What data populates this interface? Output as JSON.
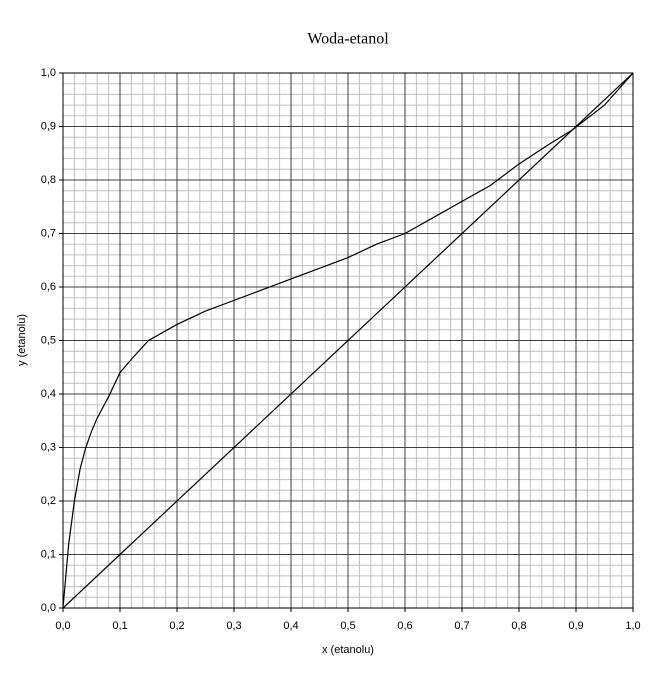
{
  "chart_data": {
    "type": "line",
    "title": "Woda-etanol",
    "xlabel": "x (etanolu)",
    "ylabel": "y (etanolu)",
    "xlim": [
      0,
      1
    ],
    "ylim": [
      0,
      1
    ],
    "xticks": [
      {
        "value": 0,
        "label": "0,0"
      },
      {
        "value": 0.1,
        "label": "0,1"
      },
      {
        "value": 0.2,
        "label": "0,2"
      },
      {
        "value": 0.3,
        "label": "0,3"
      },
      {
        "value": 0.4,
        "label": "0,4"
      },
      {
        "value": 0.5,
        "label": "0,5"
      },
      {
        "value": 0.6,
        "label": "0,6"
      },
      {
        "value": 0.7,
        "label": "0,7"
      },
      {
        "value": 0.8,
        "label": "0,8"
      },
      {
        "value": 0.9,
        "label": "0,9"
      },
      {
        "value": 1,
        "label": "1,0"
      }
    ],
    "yticks": [
      {
        "value": 0,
        "label": "0,0"
      },
      {
        "value": 0.1,
        "label": "0,1"
      },
      {
        "value": 0.2,
        "label": "0,2"
      },
      {
        "value": 0.3,
        "label": "0,3"
      },
      {
        "value": 0.4,
        "label": "0,4"
      },
      {
        "value": 0.5,
        "label": "0,5"
      },
      {
        "value": 0.6,
        "label": "0,6"
      },
      {
        "value": 0.7,
        "label": "0,7"
      },
      {
        "value": 0.8,
        "label": "0,8"
      },
      {
        "value": 0.9,
        "label": "0,9"
      },
      {
        "value": 1,
        "label": "1,0"
      }
    ],
    "xminorticks": [
      0.02,
      0.04,
      0.06,
      0.08,
      0.12,
      0.14,
      0.16,
      0.18,
      0.22,
      0.24,
      0.26,
      0.28,
      0.32,
      0.34,
      0.36,
      0.38,
      0.42,
      0.44,
      0.46,
      0.48,
      0.52,
      0.54,
      0.56,
      0.58,
      0.62,
      0.64,
      0.66,
      0.68,
      0.72,
      0.74,
      0.76,
      0.78,
      0.82,
      0.84,
      0.86,
      0.88,
      0.92,
      0.94,
      0.96,
      0.98
    ],
    "yminorticks": [
      0.02,
      0.04,
      0.06,
      0.08,
      0.12,
      0.14,
      0.16,
      0.18,
      0.22,
      0.24,
      0.26,
      0.28,
      0.32,
      0.34,
      0.36,
      0.38,
      0.42,
      0.44,
      0.46,
      0.48,
      0.52,
      0.54,
      0.56,
      0.58,
      0.62,
      0.64,
      0.66,
      0.68,
      0.72,
      0.74,
      0.76,
      0.78,
      0.82,
      0.84,
      0.86,
      0.88,
      0.92,
      0.94,
      0.96,
      0.98
    ],
    "grid": true,
    "series": [
      {
        "color": "#000000",
        "x": [
          0,
          0.01,
          0.02,
          0.03,
          0.04,
          0.05,
          0.06,
          0.07,
          0.08,
          0.1,
          0.12,
          0.15,
          0.2,
          0.25,
          0.3,
          0.35,
          0.4,
          0.45,
          0.5,
          0.55,
          0.6,
          0.65,
          0.7,
          0.75,
          0.8,
          0.85,
          0.894,
          0.95,
          1
        ],
        "values": [
          0,
          0.12,
          0.2,
          0.26,
          0.3,
          0.33,
          0.355,
          0.375,
          0.395,
          0.44,
          0.465,
          0.5,
          0.53,
          0.555,
          0.575,
          0.595,
          0.615,
          0.635,
          0.655,
          0.68,
          0.7,
          0.73,
          0.76,
          0.79,
          0.83,
          0.865,
          0.894,
          0.94,
          1
        ]
      },
      {
        "color": "#000000",
        "x": [
          0,
          1
        ],
        "values": [
          0,
          1
        ]
      }
    ]
  }
}
